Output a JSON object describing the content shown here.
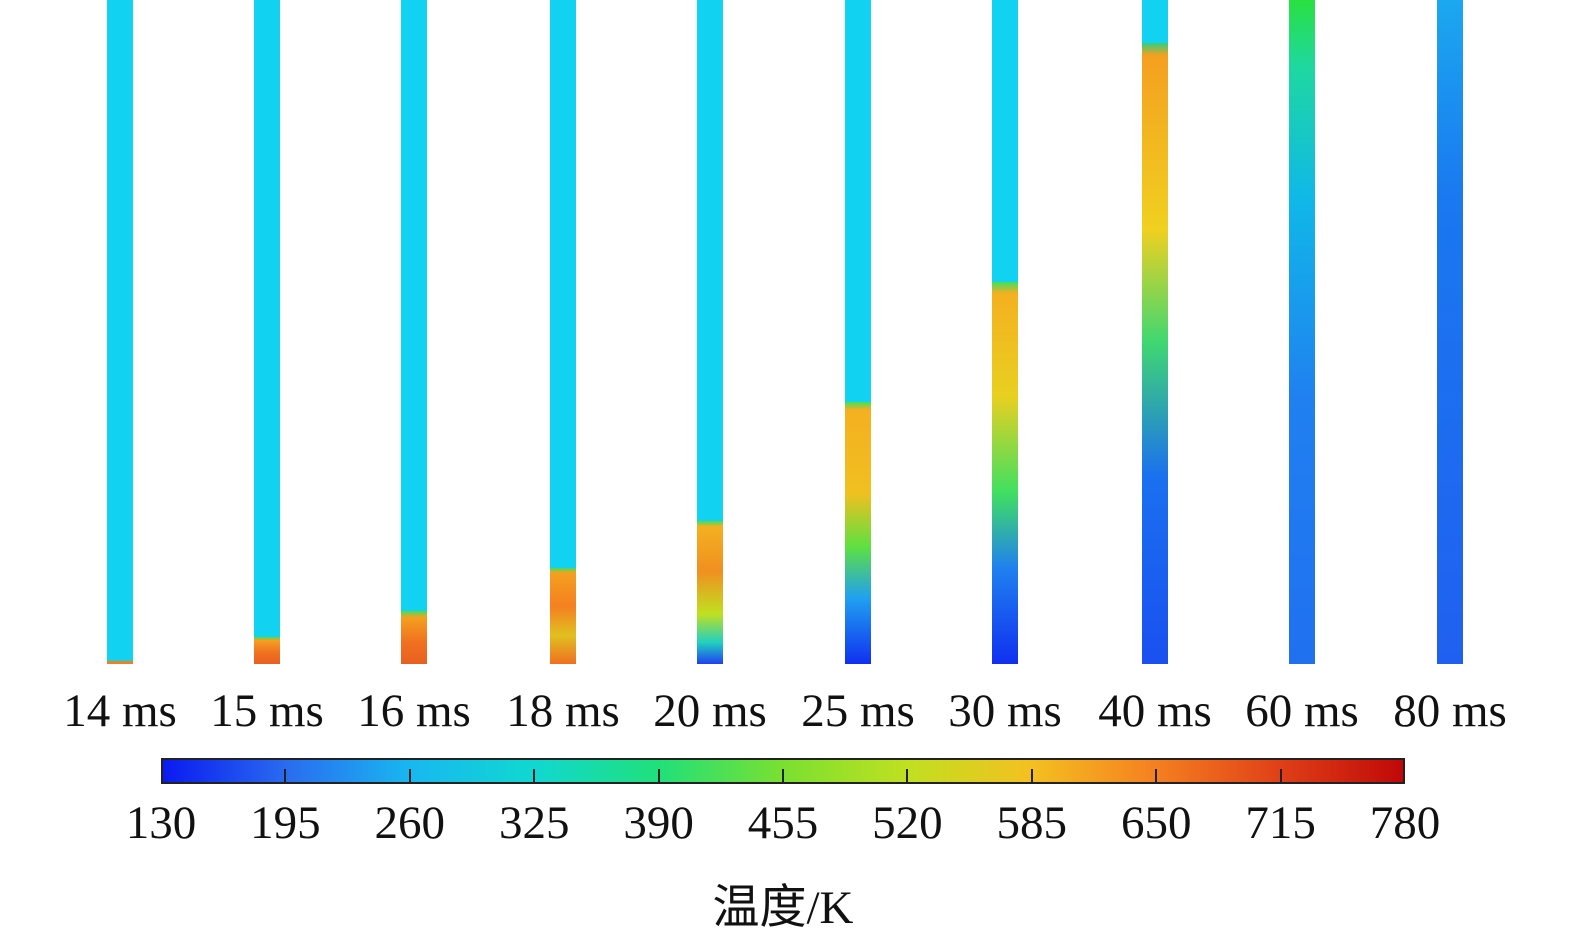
{
  "figure": {
    "time_labels": [
      "14 ms",
      "15 ms",
      "16 ms",
      "18 ms",
      "20 ms",
      "25 ms",
      "30 ms",
      "40 ms",
      "60 ms",
      "80 ms"
    ],
    "hot_fraction": [
      0.005,
      0.04,
      0.08,
      0.145,
      0.215,
      0.395,
      0.575,
      0.935,
      1.0,
      0.0
    ],
    "colorbar": {
      "ticks": [
        "130",
        "195",
        "260",
        "325",
        "390",
        "455",
        "520",
        "585",
        "650",
        "715",
        "780"
      ],
      "min": 130,
      "max": 780,
      "colors": [
        "#0a1af0",
        "#2a6cf0",
        "#18b8f0",
        "#10d8d0",
        "#20e07a",
        "#7ae030",
        "#c0e020",
        "#f4c020",
        "#f58020",
        "#e04018",
        "#c00808"
      ]
    },
    "unit_label": "温度/K"
  }
}
